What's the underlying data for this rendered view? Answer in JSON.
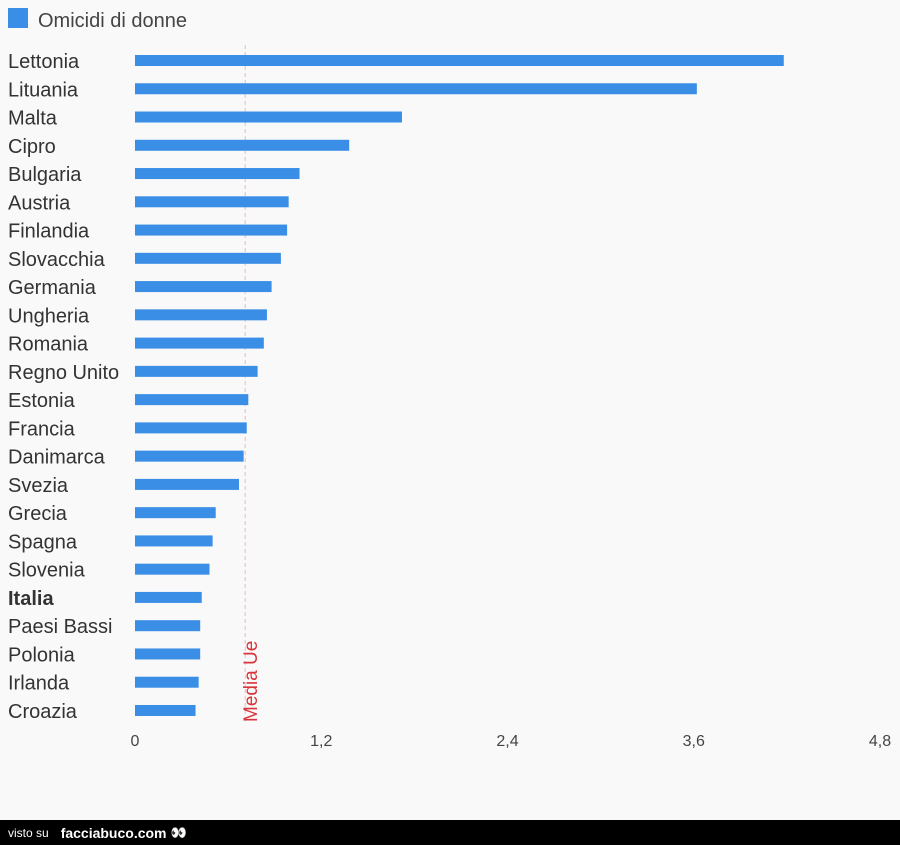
{
  "chart_data": {
    "type": "bar",
    "orientation": "horizontal",
    "legend": {
      "label": "Omicidi di donne",
      "position": "top-left"
    },
    "color": "#3a8ee6",
    "categories": [
      "Lettonia",
      "Lituania",
      "Malta",
      "Cipro",
      "Bulgaria",
      "Austria",
      "Finlandia",
      "Slovacchia",
      "Germania",
      "Ungheria",
      "Romania",
      "Regno Unito",
      "Estonia",
      "Francia",
      "Danimarca",
      "Svezia",
      "Grecia",
      "Spagna",
      "Slovenia",
      "Italia",
      "Paesi Bassi",
      "Polonia",
      "Irlanda",
      "Croazia"
    ],
    "highlight": "Italia",
    "series": [
      {
        "name": "Omicidi di donne",
        "values": [
          4.18,
          3.62,
          1.72,
          1.38,
          1.06,
          0.99,
          0.98,
          0.94,
          0.88,
          0.85,
          0.83,
          0.79,
          0.73,
          0.72,
          0.7,
          0.67,
          0.52,
          0.5,
          0.48,
          0.43,
          0.42,
          0.42,
          0.41,
          0.39
        ]
      }
    ],
    "xlim": [
      0,
      4.8
    ],
    "xticks": [
      0,
      1.2,
      2.4,
      3.6,
      4.8
    ],
    "xtick_labels": [
      "0",
      "1,2",
      "2,4",
      "3,6",
      "4,8"
    ],
    "reference_line": {
      "label": "Media Ue",
      "value": 0.71,
      "color": "#d9343a"
    }
  },
  "footer": {
    "visto": "visto su",
    "brand": "facciabuco.com",
    "logo": "👀"
  }
}
